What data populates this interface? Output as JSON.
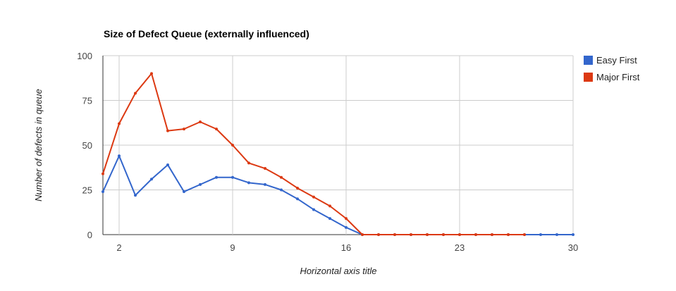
{
  "chart_data": {
    "type": "line",
    "title": "Size of Defect Queue (externally influenced)",
    "xlabel": "Horizontal axis title",
    "ylabel": "Number of defects in queue",
    "xlim": [
      1,
      30
    ],
    "ylim": [
      0,
      100
    ],
    "x_ticks": [
      2,
      9,
      16,
      23,
      30
    ],
    "y_ticks": [
      0,
      25,
      50,
      75,
      100
    ],
    "grid": true,
    "legend_position": "right",
    "x": [
      1,
      2,
      3,
      4,
      5,
      6,
      7,
      8,
      9,
      10,
      11,
      12,
      13,
      14,
      15,
      16,
      17,
      18,
      19,
      20,
      21,
      22,
      23,
      24,
      25,
      26,
      27,
      28,
      29,
      30
    ],
    "series": [
      {
        "name": "Easy First",
        "color": "#3366cc",
        "values": [
          24,
          44,
          22,
          31,
          39,
          24,
          28,
          32,
          32,
          29,
          28,
          25,
          20,
          14,
          9,
          4,
          0,
          0,
          0,
          0,
          0,
          0,
          0,
          0,
          0,
          0,
          0,
          0,
          0,
          0
        ]
      },
      {
        "name": "Major First",
        "color": "#dc3912",
        "values": [
          34,
          62,
          79,
          90,
          58,
          59,
          63,
          59,
          50,
          40,
          37,
          32,
          26,
          21,
          16,
          9,
          0,
          0,
          0,
          0,
          0,
          0,
          0,
          0,
          0,
          0,
          0,
          null,
          null,
          null
        ]
      }
    ]
  }
}
